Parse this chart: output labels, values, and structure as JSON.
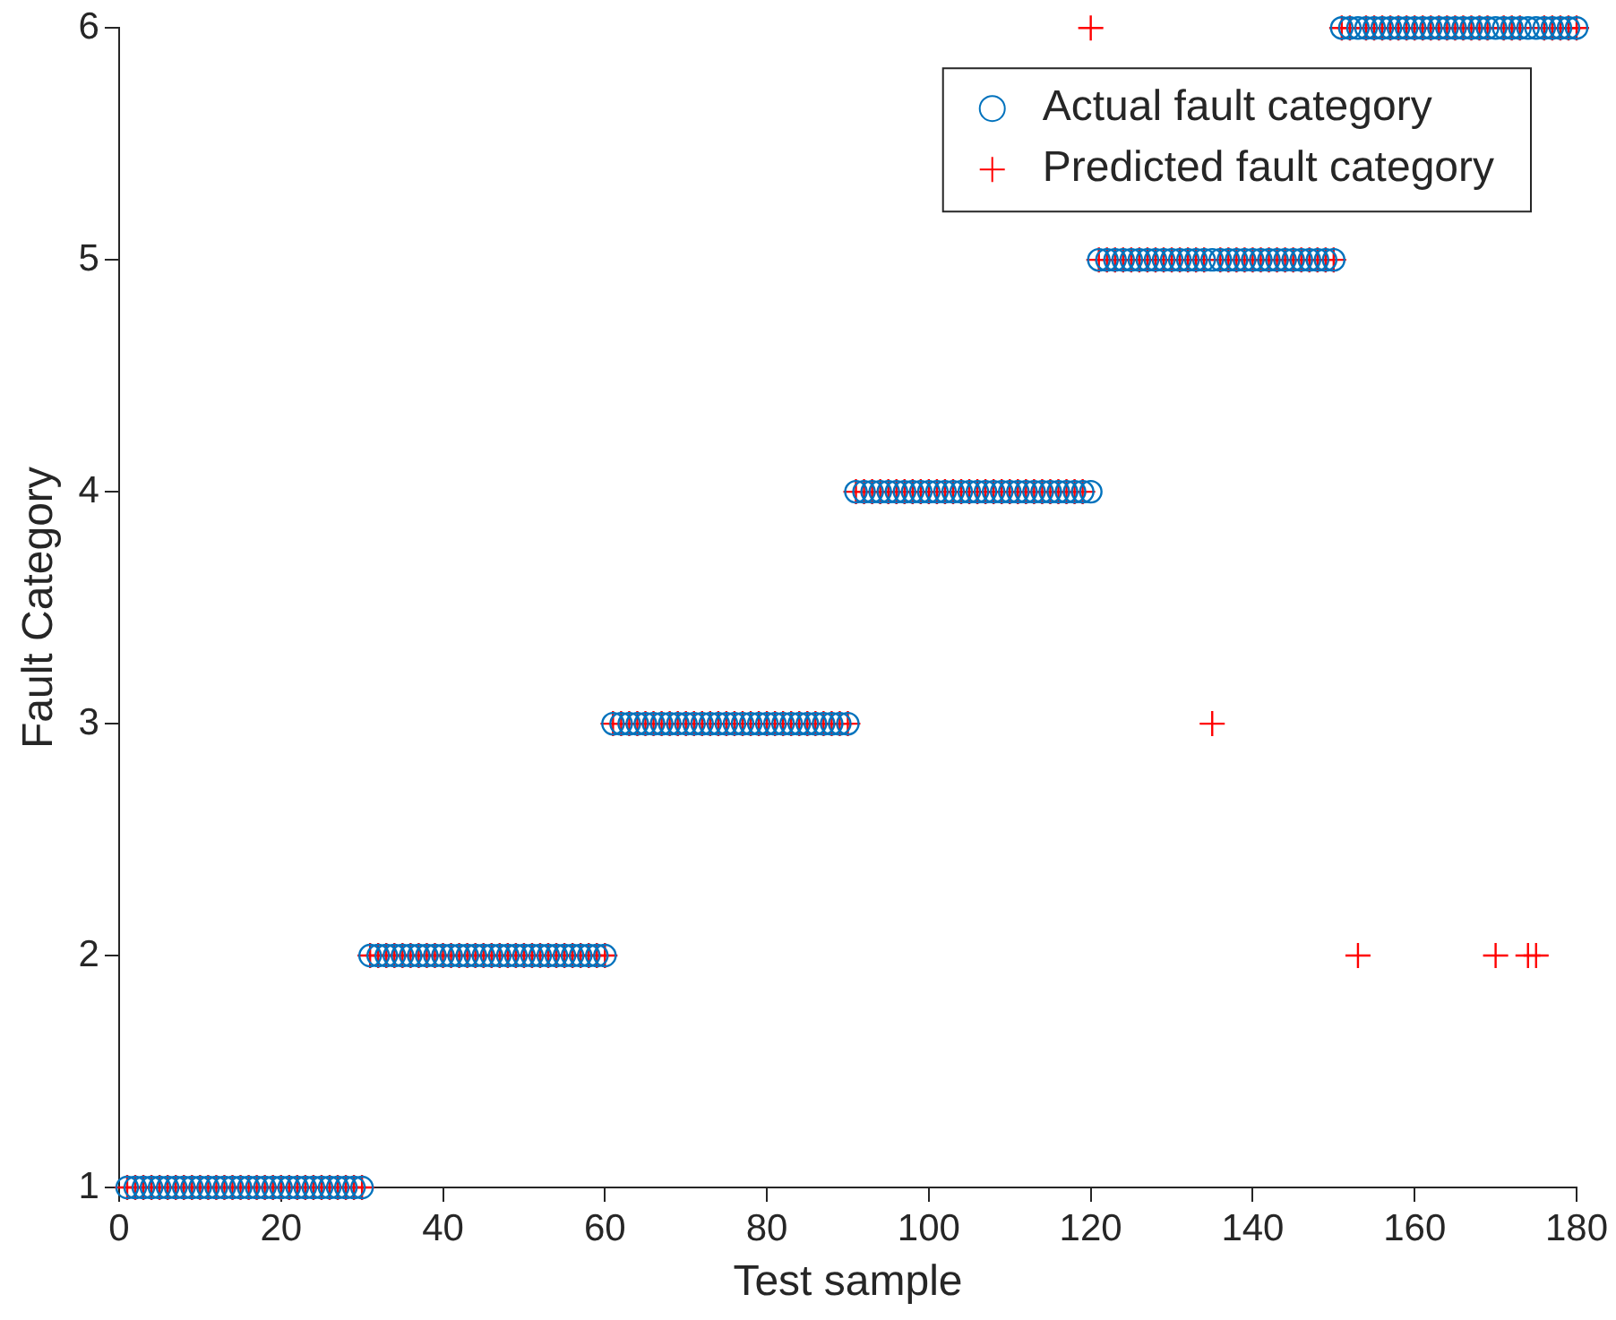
{
  "chart_data": {
    "type": "scatter",
    "xlabel": "Test sample",
    "ylabel": "Fault Category",
    "x": [
      1,
      2,
      3,
      4,
      5,
      6,
      7,
      8,
      9,
      10,
      11,
      12,
      13,
      14,
      15,
      16,
      17,
      18,
      19,
      20,
      21,
      22,
      23,
      24,
      25,
      26,
      27,
      28,
      29,
      30,
      31,
      32,
      33,
      34,
      35,
      36,
      37,
      38,
      39,
      40,
      41,
      42,
      43,
      44,
      45,
      46,
      47,
      48,
      49,
      50,
      51,
      52,
      53,
      54,
      55,
      56,
      57,
      58,
      59,
      60,
      61,
      62,
      63,
      64,
      65,
      66,
      67,
      68,
      69,
      70,
      71,
      72,
      73,
      74,
      75,
      76,
      77,
      78,
      79,
      80,
      81,
      82,
      83,
      84,
      85,
      86,
      87,
      88,
      89,
      90,
      91,
      92,
      93,
      94,
      95,
      96,
      97,
      98,
      99,
      100,
      101,
      102,
      103,
      104,
      105,
      106,
      107,
      108,
      109,
      110,
      111,
      112,
      113,
      114,
      115,
      116,
      117,
      118,
      119,
      120,
      121,
      122,
      123,
      124,
      125,
      126,
      127,
      128,
      129,
      130,
      131,
      132,
      133,
      134,
      135,
      136,
      137,
      138,
      139,
      140,
      141,
      142,
      143,
      144,
      145,
      146,
      147,
      148,
      149,
      150,
      151,
      152,
      153,
      154,
      155,
      156,
      157,
      158,
      159,
      160,
      161,
      162,
      163,
      164,
      165,
      166,
      167,
      168,
      169,
      170,
      171,
      172,
      173,
      174,
      175,
      176,
      177,
      178,
      179,
      180
    ],
    "series": [
      {
        "name": "Actual fault category",
        "color": "#0072bd",
        "marker": "circle",
        "values": [
          1,
          1,
          1,
          1,
          1,
          1,
          1,
          1,
          1,
          1,
          1,
          1,
          1,
          1,
          1,
          1,
          1,
          1,
          1,
          1,
          1,
          1,
          1,
          1,
          1,
          1,
          1,
          1,
          1,
          1,
          2,
          2,
          2,
          2,
          2,
          2,
          2,
          2,
          2,
          2,
          2,
          2,
          2,
          2,
          2,
          2,
          2,
          2,
          2,
          2,
          2,
          2,
          2,
          2,
          2,
          2,
          2,
          2,
          2,
          2,
          3,
          3,
          3,
          3,
          3,
          3,
          3,
          3,
          3,
          3,
          3,
          3,
          3,
          3,
          3,
          3,
          3,
          3,
          3,
          3,
          3,
          3,
          3,
          3,
          3,
          3,
          3,
          3,
          3,
          3,
          4,
          4,
          4,
          4,
          4,
          4,
          4,
          4,
          4,
          4,
          4,
          4,
          4,
          4,
          4,
          4,
          4,
          4,
          4,
          4,
          4,
          4,
          4,
          4,
          4,
          4,
          4,
          4,
          4,
          4,
          5,
          5,
          5,
          5,
          5,
          5,
          5,
          5,
          5,
          5,
          5,
          5,
          5,
          5,
          5,
          5,
          5,
          5,
          5,
          5,
          5,
          5,
          5,
          5,
          5,
          5,
          5,
          5,
          5,
          5,
          6,
          6,
          6,
          6,
          6,
          6,
          6,
          6,
          6,
          6,
          6,
          6,
          6,
          6,
          6,
          6,
          6,
          6,
          6,
          6,
          6,
          6,
          6,
          6,
          6,
          6,
          6,
          6,
          6,
          6
        ]
      },
      {
        "name": "Predicted fault category",
        "color": "#ff0000",
        "marker": "cross",
        "values": [
          1,
          1,
          1,
          1,
          1,
          1,
          1,
          1,
          1,
          1,
          1,
          1,
          1,
          1,
          1,
          1,
          1,
          1,
          1,
          1,
          1,
          1,
          1,
          1,
          1,
          1,
          1,
          1,
          1,
          1,
          2,
          2,
          2,
          2,
          2,
          2,
          2,
          2,
          2,
          2,
          2,
          2,
          2,
          2,
          2,
          2,
          2,
          2,
          2,
          2,
          2,
          2,
          2,
          2,
          2,
          2,
          2,
          2,
          2,
          2,
          3,
          3,
          3,
          3,
          3,
          3,
          3,
          3,
          3,
          3,
          3,
          3,
          3,
          3,
          3,
          3,
          3,
          3,
          3,
          3,
          3,
          3,
          3,
          3,
          3,
          3,
          3,
          3,
          3,
          3,
          4,
          4,
          4,
          4,
          4,
          4,
          4,
          4,
          4,
          4,
          4,
          4,
          4,
          4,
          4,
          4,
          4,
          4,
          4,
          4,
          4,
          4,
          4,
          4,
          4,
          4,
          4,
          4,
          4,
          6,
          5,
          5,
          5,
          5,
          5,
          5,
          5,
          5,
          5,
          5,
          5,
          5,
          5,
          5,
          3,
          5,
          5,
          5,
          5,
          5,
          5,
          5,
          5,
          5,
          5,
          5,
          5,
          5,
          5,
          5,
          6,
          6,
          2,
          6,
          6,
          6,
          6,
          6,
          6,
          6,
          6,
          6,
          6,
          6,
          6,
          6,
          6,
          6,
          6,
          2,
          6,
          6,
          6,
          2,
          2,
          6,
          6,
          6,
          6,
          6
        ]
      }
    ],
    "xlim": [
      0,
      180
    ],
    "xticks": [
      0,
      20,
      40,
      60,
      80,
      100,
      120,
      140,
      160,
      180
    ],
    "ylim": [
      1,
      6
    ],
    "yticks": [
      1,
      2,
      3,
      4,
      5,
      6
    ],
    "grid": false,
    "legend": "top right"
  }
}
